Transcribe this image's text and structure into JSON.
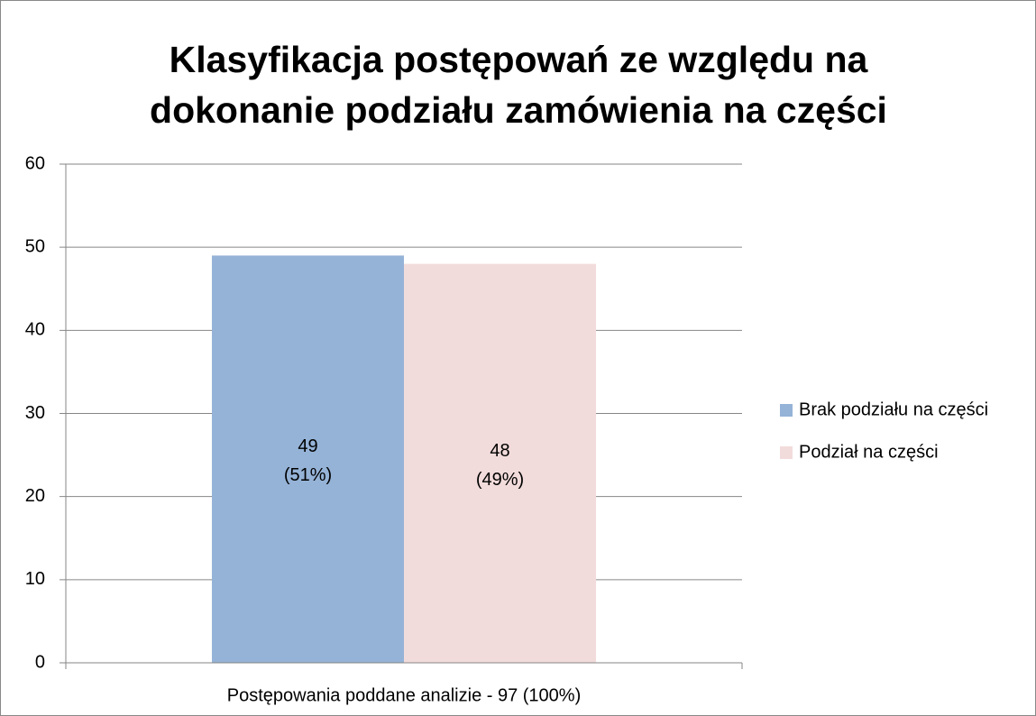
{
  "chart_data": {
    "type": "bar",
    "title": "Klasyfikacja postępowań ze względu na dokonanie podziału zamówienia na części",
    "categories": [
      "Postępowania poddane analizie - 97 (100%)"
    ],
    "series": [
      {
        "name": "Brak podziału na części",
        "color": "#95b3d7",
        "values": [
          49
        ],
        "value_labels": [
          "49 (51%)"
        ]
      },
      {
        "name": "Podział na części",
        "color": "#f2dcdb",
        "values": [
          48
        ],
        "value_labels": [
          "48 (49%)"
        ]
      }
    ],
    "ylim": [
      0,
      60
    ],
    "yticks": [
      0,
      10,
      20,
      30,
      40,
      50,
      60
    ],
    "grid": true,
    "legend": "right"
  }
}
